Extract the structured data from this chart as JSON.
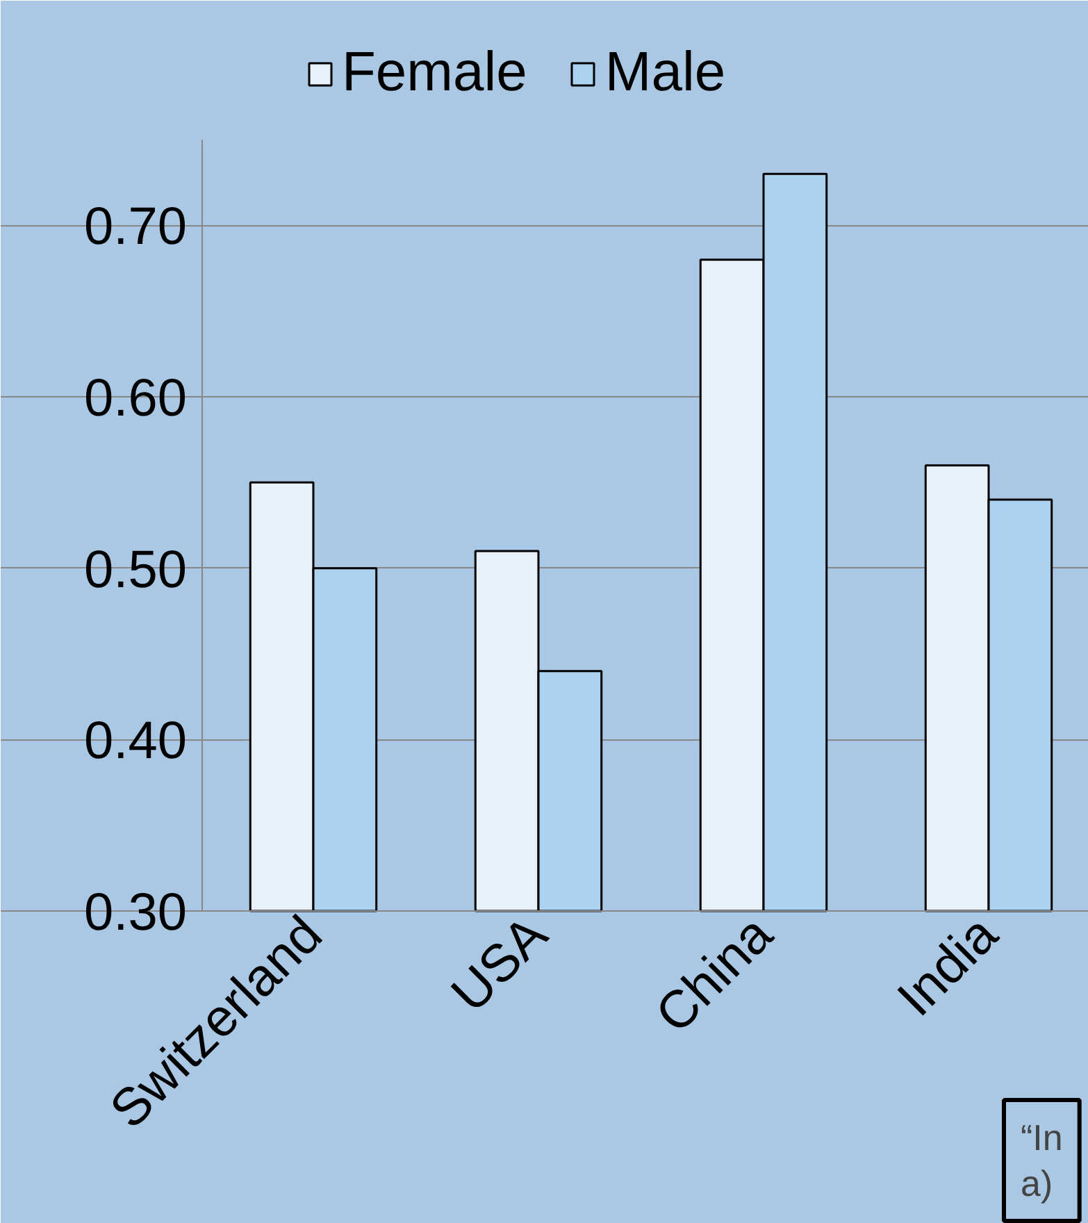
{
  "chart_data": {
    "type": "bar",
    "categories": [
      "Switzerland",
      "USA",
      "China",
      "India"
    ],
    "series": [
      {
        "name": "Female",
        "color": "#e8f1fa",
        "values": [
          0.55,
          0.51,
          0.68,
          0.56
        ]
      },
      {
        "name": "Male",
        "color": "#acd2f0",
        "values": [
          0.5,
          0.44,
          0.73,
          0.54
        ]
      }
    ],
    "ylim": [
      0.3,
      0.75
    ],
    "yticks": [
      {
        "value": 0.3,
        "label": "0.30"
      },
      {
        "value": 0.4,
        "label": "0.40"
      },
      {
        "value": 0.5,
        "label": "0.50"
      },
      {
        "value": 0.6,
        "label": "0.60"
      },
      {
        "value": 0.7,
        "label": "0.70"
      }
    ],
    "grid": "y",
    "legend": "top",
    "annotations": [
      "“In\na)"
    ]
  }
}
